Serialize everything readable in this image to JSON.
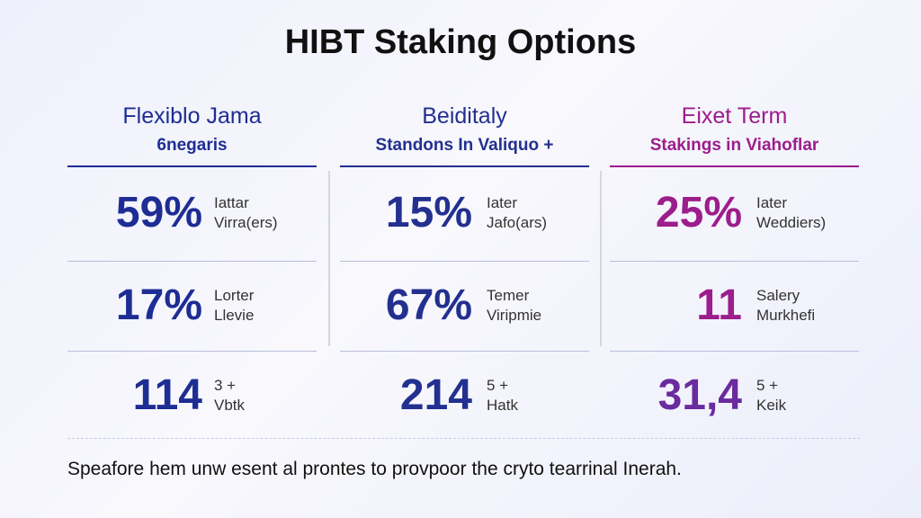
{
  "title": "HIBT Staking Options",
  "columns": [
    {
      "heading": "Flexiblo Jama",
      "subheading": "6negaris",
      "color": "#1e2d94",
      "rows": [
        {
          "value": "59%",
          "label": [
            "Iattar",
            "Virra(ers)"
          ]
        },
        {
          "value": "17%",
          "label": [
            "Lorter",
            "Llevie"
          ]
        },
        {
          "value": "114",
          "label": [
            "3 +",
            "Vbtk"
          ]
        }
      ]
    },
    {
      "heading": "Beiditaly",
      "subheading": "Standons In Valiquo +",
      "color": "#23308f",
      "rows": [
        {
          "value": "15%",
          "label": [
            "Iater",
            "Jafo(ars)"
          ]
        },
        {
          "value": "67%",
          "label": [
            "Temer",
            "Viripmie"
          ]
        },
        {
          "value": "214",
          "label": [
            "5 +",
            "Hatk"
          ]
        }
      ]
    },
    {
      "heading": "Eixet Term",
      "subheading": "Stakings in Viahoflar",
      "color": "#9c1d8c",
      "rows": [
        {
          "value": "25%",
          "label": [
            "Iater",
            "Weddiers)"
          ]
        },
        {
          "value": "11",
          "label": [
            "Salery",
            "Murkhefi"
          ]
        },
        {
          "value": "31,4",
          "label": [
            "5 +",
            "Keik"
          ]
        }
      ]
    }
  ],
  "footer": "Speafore hem unw esent al prontes to provpoor the cryto tearrinal Inerah."
}
